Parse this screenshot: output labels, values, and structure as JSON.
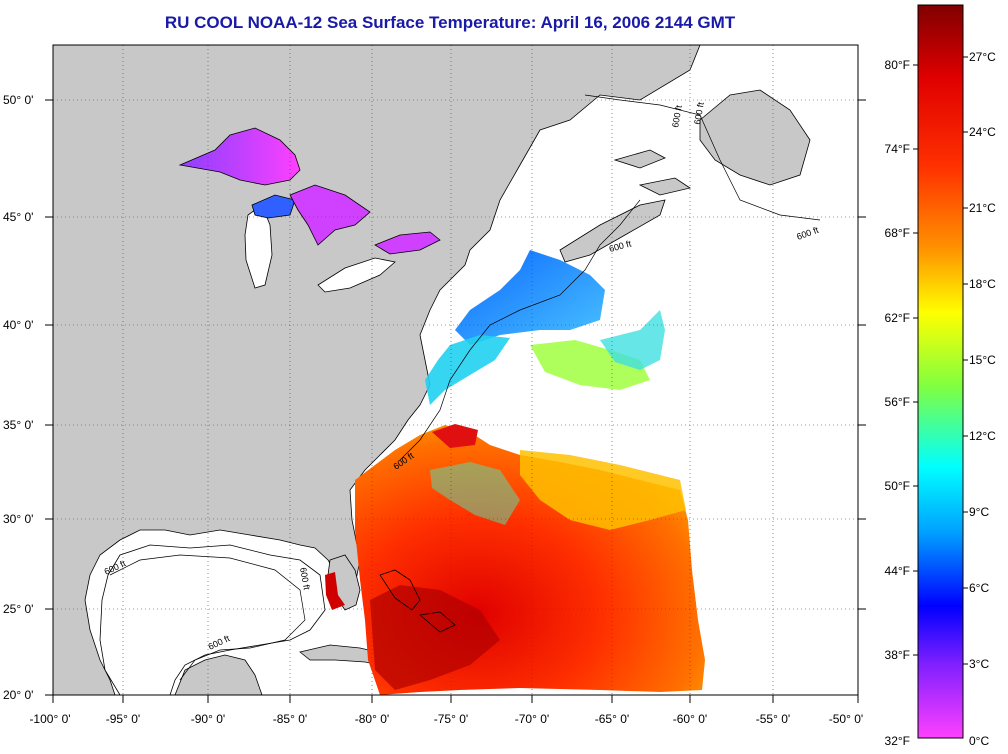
{
  "title": "RU COOL  NOAA-12  Sea Surface Temperature:  April 16, 2006 2144 GMT",
  "map": {
    "longitude_labels": [
      "-100° 0'",
      "-95° 0'",
      "-90° 0'",
      "-85° 0'",
      "-80° 0'",
      "-75° 0'",
      "-70° 0'",
      "-65° 0'",
      "-60° 0'",
      "-55° 0'",
      "-50° 0'"
    ],
    "latitude_labels": [
      "50° 0'",
      "45° 0'",
      "40° 0'",
      "35° 0'",
      "30° 0'",
      "25° 0'",
      "20° 0'"
    ],
    "depth_contour_labels": [
      "600 ft",
      "600 ft",
      "600 ft",
      "600 ft",
      "600 ft",
      "600 ft",
      "600 ft",
      "600 ft"
    ],
    "colors": {
      "land": "#c8c8c8",
      "ocean_nodata": "#ffffff",
      "frame": "#000000"
    }
  },
  "colorbar": {
    "fahrenheit_labels": [
      "80°F",
      "74°F",
      "68°F",
      "62°F",
      "56°F",
      "50°F",
      "44°F",
      "38°F",
      "32°F"
    ],
    "celsius_labels": [
      "27°C",
      "24°C",
      "21°C",
      "18°C",
      "15°C",
      "12°C",
      "9°C",
      "6°C",
      "3°C",
      "0°C"
    ],
    "gradient_stops_top_to_bottom": [
      "#8b0000",
      "#ff0000",
      "#ff8000",
      "#ffff00",
      "#80ff00",
      "#00ffff",
      "#0080ff",
      "#0000ff",
      "#8000ff",
      "#ff00ff"
    ]
  }
}
